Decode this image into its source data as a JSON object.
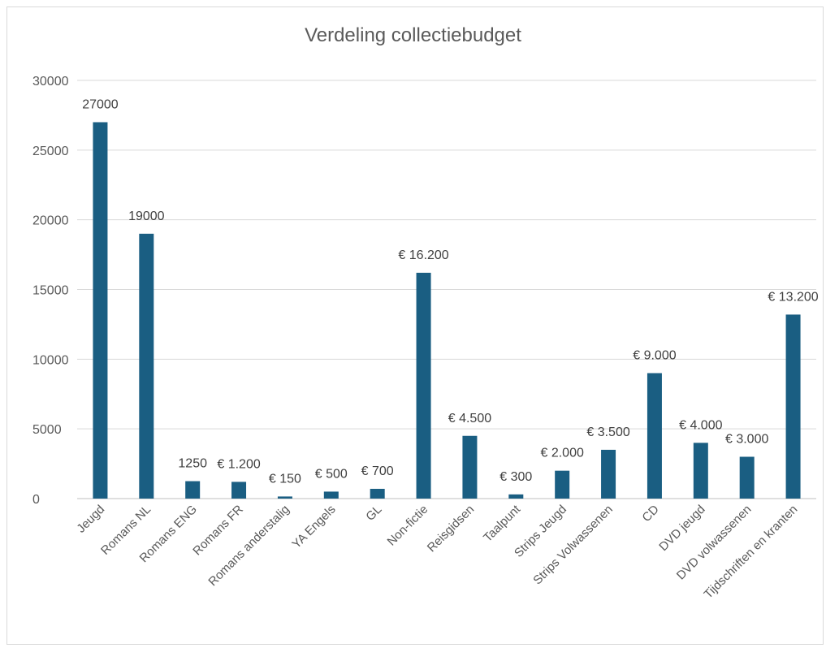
{
  "chart_data": {
    "type": "bar",
    "title": "Verdeling collectiebudget",
    "xlabel": "",
    "ylabel": "",
    "ylim": [
      0,
      30000
    ],
    "yticks": [
      "0",
      "5000",
      "10000",
      "15000",
      "20000",
      "25000",
      "30000"
    ],
    "ytick_values": [
      0,
      5000,
      10000,
      15000,
      20000,
      25000,
      30000
    ],
    "grid": true,
    "legend": "none",
    "bar_color": "#1a5e82",
    "categories": [
      "Jeugd",
      "Romans NL",
      "Romans ENG",
      "Romans FR",
      "Romans anderstalig",
      "YA Engels",
      "GL",
      "Non-fictie",
      "Reisgidsen",
      "Taalpunt",
      "Strips Jeugd",
      "Strips Volwassenen",
      "CD",
      "DVD jeugd",
      "DVD volwassenen",
      "Tijdschriften en kranten"
    ],
    "values": [
      27000,
      19000,
      1250,
      1200,
      150,
      500,
      700,
      16200,
      4500,
      300,
      2000,
      3500,
      9000,
      4000,
      3000,
      13200
    ],
    "data_labels": [
      "27000",
      "19000",
      "1250",
      "€ 1.200",
      "€ 150",
      "€ 500",
      "€ 700",
      "€ 16.200",
      "€ 4.500",
      "€ 300",
      "€ 2.000",
      "€ 3.500",
      "€ 9.000",
      "€ 4.000",
      "€ 3.000",
      "€ 13.200"
    ]
  }
}
